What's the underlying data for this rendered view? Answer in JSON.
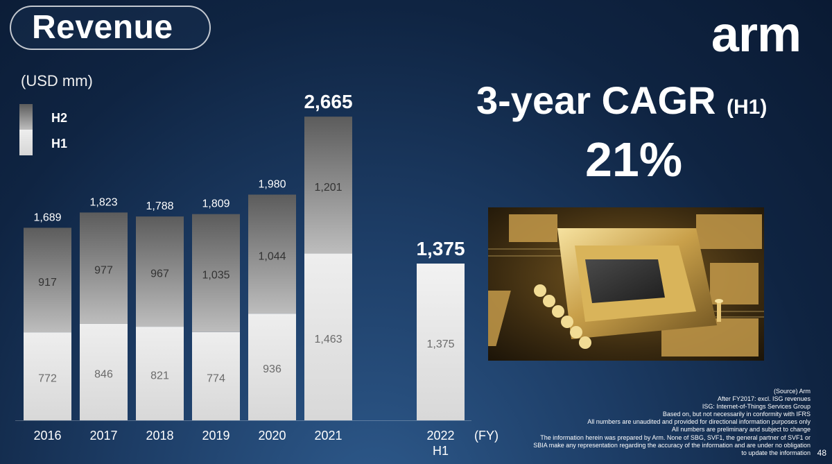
{
  "slide": {
    "title": "Revenue",
    "logo_text": "arm",
    "unit_label": "(USD mm)",
    "legend": [
      {
        "name": "H2",
        "color_top": "#5c5c5c",
        "color_bottom": "#bdbdbd"
      },
      {
        "name": "H1",
        "color_top": "#eeeeee",
        "color_bottom": "#d6d6d6"
      }
    ],
    "cagr_title": "3-year CAGR",
    "cagr_qualifier": "(H1)",
    "cagr_value": "21%",
    "image_icon": "circuit-chip-photo",
    "page_number": "48",
    "notes": [
      "(Source) Arm",
      "After FY2017: excl. ISG revenues",
      "ISG: Internet-of-Things Services Group",
      "Based on, but not necessarily in conformity with IFRS",
      "All numbers are unaudited and provided for directional information purposes only",
      "All numbers are preliminary and subject to change",
      "The information herein was prepared by Arm. None of SBG, SVF1, the general partner of SVF1 or",
      "SBIA make any representation regarding the accuracy of the information and are under no obligation",
      "to update the information"
    ]
  },
  "chart_data": {
    "type": "bar",
    "stacked": true,
    "title": "Revenue",
    "ylabel": "(USD mm)",
    "xlabel": "(FY)",
    "ylim": [
      0,
      2665
    ],
    "categories": [
      "2016",
      "2017",
      "2018",
      "2019",
      "2020",
      "2021",
      "2022"
    ],
    "category_sublabels": [
      "",
      "",
      "",
      "",
      "",
      "",
      "H1"
    ],
    "series": [
      {
        "name": "H1",
        "values": [
          772,
          846,
          821,
          774,
          936,
          1463,
          1375
        ]
      },
      {
        "name": "H2",
        "values": [
          917,
          977,
          967,
          1035,
          1044,
          1201,
          null
        ]
      }
    ],
    "totals": [
      "1,689",
      "1,823",
      "1,788",
      "1,809",
      "1,980",
      "2,665",
      "1,375"
    ],
    "h1_labels": [
      "772",
      "846",
      "821",
      "774",
      "936",
      "1,463",
      "1,375"
    ],
    "h2_labels": [
      "917",
      "977",
      "967",
      "1,035",
      "1,044",
      "1,201",
      ""
    ],
    "emphasized_totals": [
      false,
      false,
      false,
      false,
      false,
      true,
      true
    ]
  }
}
